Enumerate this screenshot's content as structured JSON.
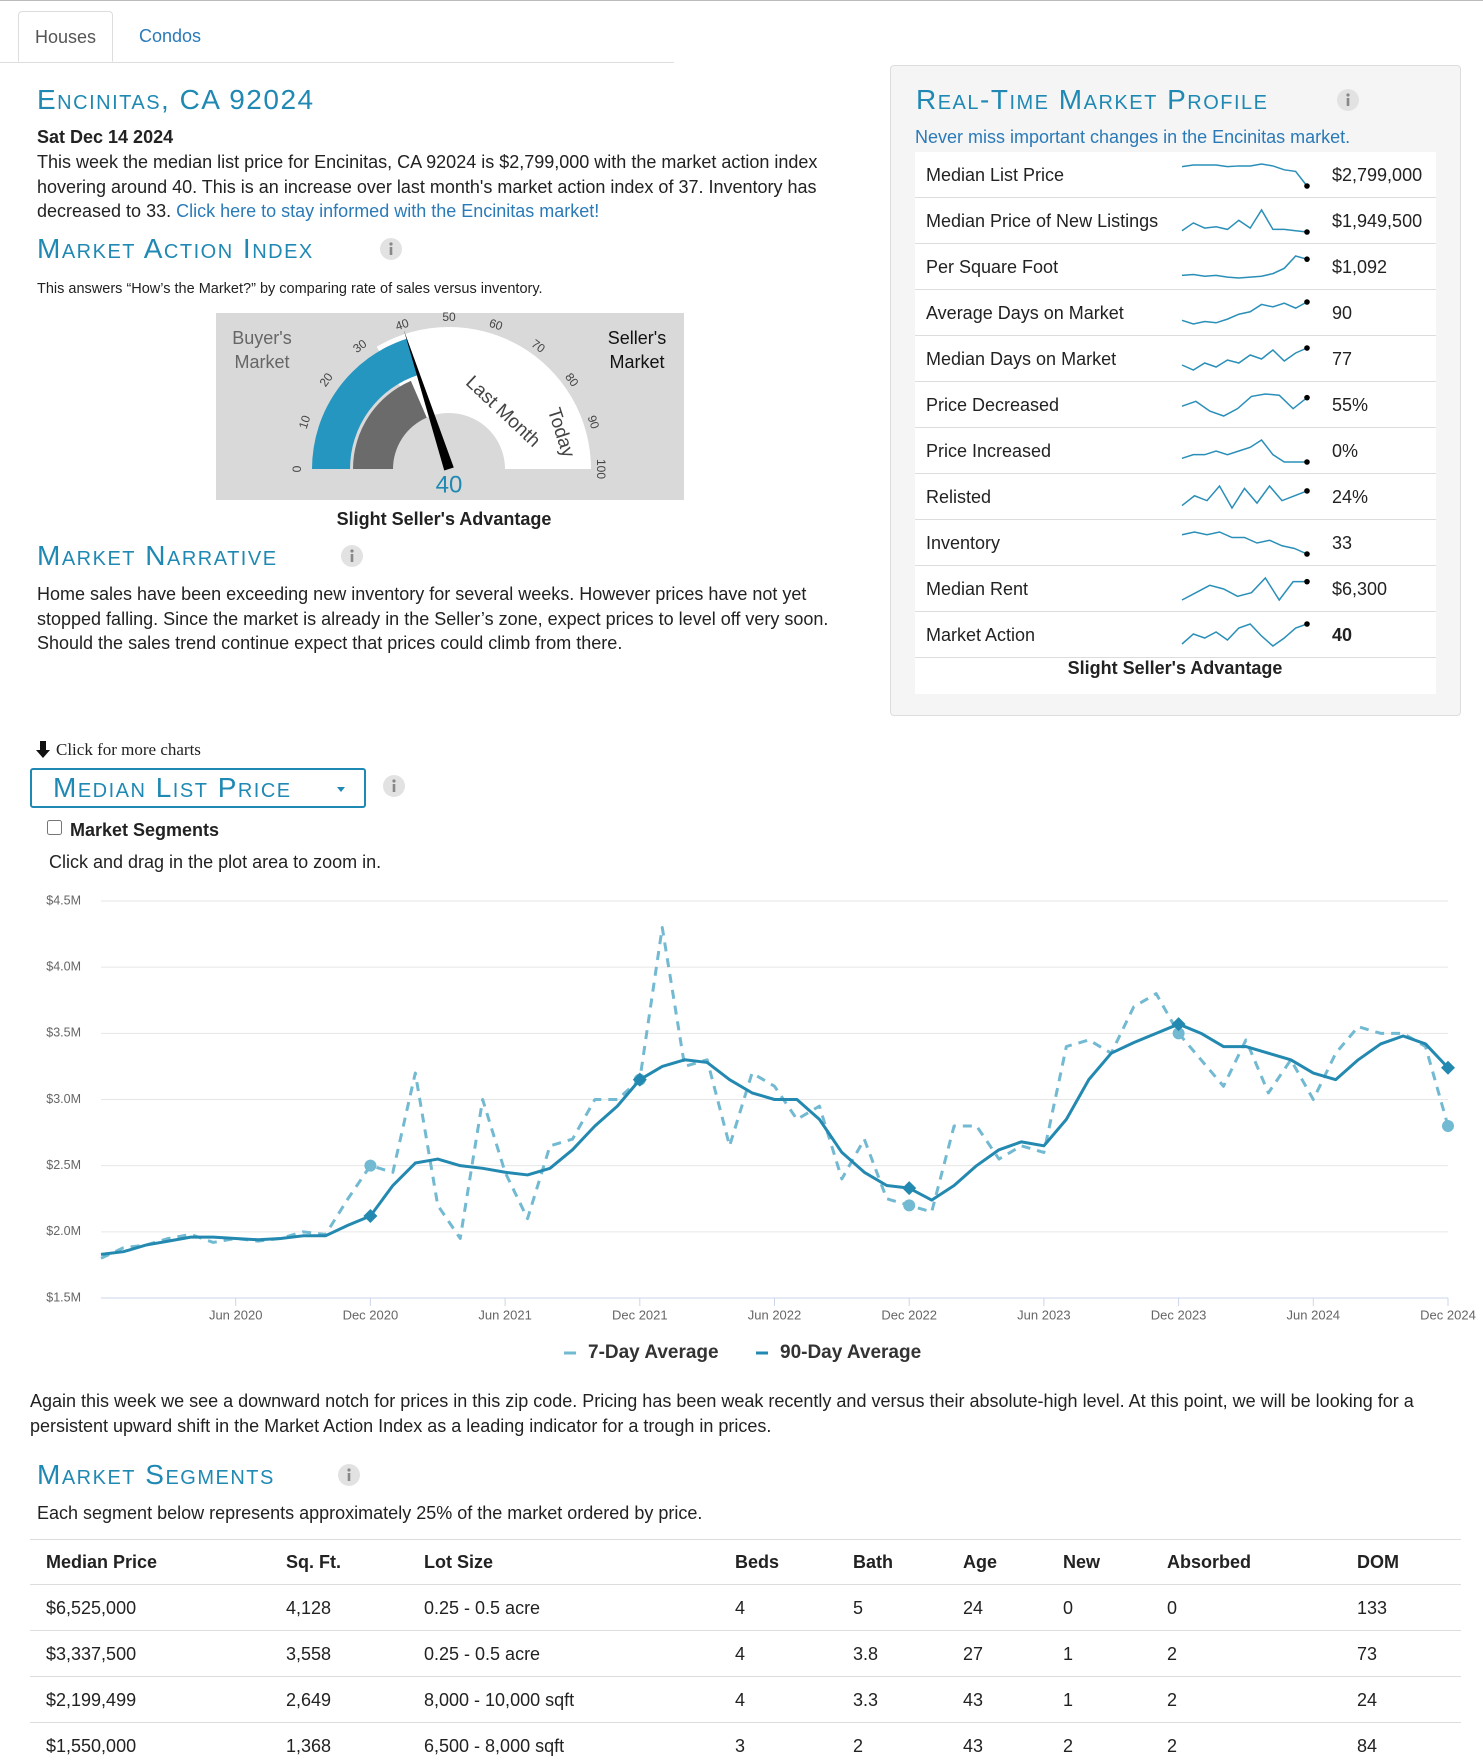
{
  "tabs": [
    "Houses",
    "Condos"
  ],
  "header": {
    "title": "Encinitas, CA 92024",
    "date": "Sat Dec 14 2024",
    "summary": "This week the median list price for Encinitas, CA 92024 is $2,799,000 with the market action index hovering around 40. This is an increase over last month's market action index of 37. Inventory has decreased to 33.",
    "link": "Click here to stay informed with the Encinitas market!"
  },
  "market_action_index": {
    "title": "Market Action Index",
    "subtitle": "This answers “How’s the Market?” by comparing rate of sales versus inventory.",
    "gauge": {
      "type": "gauge",
      "value": 40,
      "last_month": 37,
      "range": [
        0,
        100
      ],
      "ticks": [
        0,
        10,
        20,
        30,
        40,
        50,
        60,
        70,
        80,
        90,
        100
      ],
      "buyer": "Buyer's Market",
      "seller": "Seller's Market",
      "last_month_label": "Last Month",
      "today_label": "Today",
      "verdict": "Slight Seller's Advantage"
    }
  },
  "narrative": {
    "title": "Market Narrative",
    "text": "Home sales have been exceeding new inventory for several weeks. However prices have not yet stopped falling. Since the market is already in the Seller’s zone, expect prices to level off very soon. Should the sales trend continue expect that prices could climb from there."
  },
  "profile": {
    "title": "Real-Time Market Profile",
    "subtitle": "Never miss important changes in the Encinitas market.",
    "verdict": "Slight Seller's Advantage",
    "rows": [
      {
        "label": "Median List Price",
        "value": "$2,799,000",
        "trend": [
          3400000,
          3450000,
          3450000,
          3450000,
          3400000,
          3420000,
          3420000,
          3480000,
          3420000,
          3300000,
          3250000,
          2799000
        ]
      },
      {
        "label": "Median Price of New Listings",
        "value": "$1,949,500",
        "trend": [
          2000000,
          2300000,
          2100000,
          2150000,
          2050000,
          2400000,
          2100000,
          2800000,
          2050000,
          2050000,
          2000000,
          1949500
        ]
      },
      {
        "label": "Per Square Foot",
        "value": "$1,092",
        "trend": [
          1000,
          1005,
          995,
          1000,
          990,
          985,
          990,
          995,
          1010,
          1040,
          1110,
          1092
        ]
      },
      {
        "label": "Average Days on Market",
        "value": "90",
        "trend": [
          75,
          72,
          74,
          73,
          76,
          80,
          82,
          88,
          86,
          89,
          85,
          90
        ]
      },
      {
        "label": "Median Days on Market",
        "value": "77",
        "trend": [
          60,
          55,
          62,
          58,
          65,
          62,
          70,
          66,
          75,
          64,
          72,
          77
        ]
      },
      {
        "label": "Price Decreased",
        "value": "55%",
        "trend": [
          48,
          52,
          44,
          40,
          46,
          56,
          58,
          57,
          46,
          55
        ]
      },
      {
        "label": "Price Increased",
        "value": "0%",
        "trend": [
          0.5,
          1,
          1,
          1.5,
          1,
          1.5,
          2,
          3,
          1,
          0,
          0,
          0
        ]
      },
      {
        "label": "Relisted",
        "value": "24%",
        "trend": [
          18,
          22,
          20,
          26,
          17,
          25,
          19,
          26,
          20,
          22,
          24
        ]
      },
      {
        "label": "Inventory",
        "value": "33",
        "trend": [
          40,
          41,
          40,
          41,
          39,
          39,
          37,
          38,
          36,
          35,
          33
        ]
      },
      {
        "label": "Median Rent",
        "value": "$6,300",
        "trend": [
          5800,
          6000,
          6200,
          6100,
          5900,
          6000,
          6400,
          5800,
          6300,
          6300
        ]
      },
      {
        "label": "Market Action",
        "value": "40",
        "trend": [
          30,
          35,
          33,
          36,
          32,
          38,
          40,
          34,
          29,
          33,
          38,
          40
        ]
      }
    ]
  },
  "chart_selector": {
    "hint": "Click for more charts",
    "selected": "Median List Price",
    "checkbox": "Market Segments",
    "zoom_hint": "Click and drag in the plot area to zoom in."
  },
  "chart_data": {
    "type": "line",
    "x": [
      "2019-12",
      "2020-01",
      "2020-02",
      "2020-03",
      "2020-04",
      "2020-05",
      "2020-06",
      "2020-07",
      "2020-08",
      "2020-09",
      "2020-10",
      "2020-11",
      "2020-12",
      "2021-01",
      "2021-02",
      "2021-03",
      "2021-04",
      "2021-05",
      "2021-06",
      "2021-07",
      "2021-08",
      "2021-09",
      "2021-10",
      "2021-11",
      "2021-12",
      "2022-01",
      "2022-02",
      "2022-03",
      "2022-04",
      "2022-05",
      "2022-06",
      "2022-07",
      "2022-08",
      "2022-09",
      "2022-10",
      "2022-11",
      "2022-12",
      "2023-01",
      "2023-02",
      "2023-03",
      "2023-04",
      "2023-05",
      "2023-06",
      "2023-07",
      "2023-08",
      "2023-09",
      "2023-10",
      "2023-11",
      "2023-12",
      "2024-01",
      "2024-02",
      "2024-03",
      "2024-04",
      "2024-05",
      "2024-06",
      "2024-07",
      "2024-08",
      "2024-09",
      "2024-10",
      "2024-11",
      "2024-12"
    ],
    "series": [
      {
        "name": "7-Day Average",
        "color": "#72b9d2",
        "style": "dashed",
        "values": [
          1800000,
          1880000,
          1900000,
          1950000,
          1980000,
          1920000,
          1950000,
          1930000,
          1950000,
          2000000,
          1980000,
          2250000,
          2500000,
          2450000,
          3200000,
          2200000,
          1950000,
          3000000,
          2450000,
          2100000,
          2650000,
          2700000,
          3000000,
          3000000,
          3150000,
          4300000,
          3250000,
          3300000,
          2650000,
          3200000,
          3100000,
          2850000,
          2950000,
          2400000,
          2700000,
          2250000,
          2200000,
          2150000,
          2800000,
          2800000,
          2550000,
          2650000,
          2600000,
          3400000,
          3450000,
          3350000,
          3700000,
          3800000,
          3500000,
          3300000,
          3100000,
          3450000,
          3050000,
          3300000,
          3000000,
          3350000,
          3550000,
          3500000,
          3500000,
          3400000,
          2800000
        ]
      },
      {
        "name": "90-Day Average",
        "color": "#2389b0",
        "style": "solid",
        "values": [
          1830000,
          1850000,
          1900000,
          1930000,
          1960000,
          1960000,
          1950000,
          1940000,
          1950000,
          1970000,
          1970000,
          2050000,
          2120000,
          2350000,
          2520000,
          2550000,
          2500000,
          2480000,
          2450000,
          2430000,
          2480000,
          2620000,
          2800000,
          2950000,
          3150000,
          3250000,
          3300000,
          3280000,
          3150000,
          3050000,
          3000000,
          3000000,
          2850000,
          2600000,
          2450000,
          2350000,
          2330000,
          2240000,
          2350000,
          2500000,
          2620000,
          2680000,
          2650000,
          2850000,
          3150000,
          3350000,
          3430000,
          3500000,
          3570000,
          3500000,
          3400000,
          3400000,
          3350000,
          3300000,
          3200000,
          3150000,
          3300000,
          3420000,
          3480000,
          3420000,
          3240000
        ]
      }
    ],
    "xlim": [
      "2019-12",
      "2024-12"
    ],
    "xticks": [
      {
        "value": "2020-06",
        "label": "Jun 2020"
      },
      {
        "value": "2020-12",
        "label": "Dec 2020"
      },
      {
        "value": "2021-06",
        "label": "Jun 2021"
      },
      {
        "value": "2021-12",
        "label": "Dec 2021"
      },
      {
        "value": "2022-06",
        "label": "Jun 2022"
      },
      {
        "value": "2022-12",
        "label": "Dec 2022"
      },
      {
        "value": "2023-06",
        "label": "Jun 2023"
      },
      {
        "value": "2023-12",
        "label": "Dec 2023"
      },
      {
        "value": "2024-06",
        "label": "Jun 2024"
      },
      {
        "value": "2024-12",
        "label": "Dec 2024"
      }
    ],
    "ylim": [
      1500000,
      4500000
    ],
    "yticks": [
      {
        "value": 1500000,
        "label": "$1.5M"
      },
      {
        "value": 2000000,
        "label": "$2.0M"
      },
      {
        "value": 2500000,
        "label": "$2.5M"
      },
      {
        "value": 3000000,
        "label": "$3.0M"
      },
      {
        "value": 3500000,
        "label": "$3.5M"
      },
      {
        "value": 4000000,
        "label": "$4.0M"
      },
      {
        "value": 4500000,
        "label": "$4.5M"
      }
    ],
    "grid": true,
    "legend": "bottom"
  },
  "chart_note": "Again this week we see a downward notch for prices in this zip code. Pricing has been weak recently and versus their absolute-high level. At this point, we will be looking for a persistent upward shift in the Market Action Index as a leading indicator for a trough in prices.",
  "segments": {
    "title": "Market Segments",
    "subtitle": "Each segment below represents approximately 25% of the market ordered by price.",
    "columns": [
      "Median Price",
      "Sq. Ft.",
      "Lot Size",
      "Beds",
      "Bath",
      "Age",
      "New",
      "Absorbed",
      "DOM"
    ],
    "rows": [
      [
        "$6,525,000",
        "4,128",
        "0.25 - 0.5 acre",
        "4",
        "5",
        "24",
        "0",
        "0",
        "133"
      ],
      [
        "$3,337,500",
        "3,558",
        "0.25 - 0.5 acre",
        "4",
        "3.8",
        "27",
        "1",
        "2",
        "73"
      ],
      [
        "$2,199,499",
        "2,649",
        "8,000 - 10,000 sqft",
        "4",
        "3.3",
        "43",
        "1",
        "2",
        "24"
      ],
      [
        "$1,550,000",
        "1,368",
        "6,500 - 8,000 sqft",
        "3",
        "2",
        "43",
        "2",
        "2",
        "84"
      ]
    ]
  }
}
